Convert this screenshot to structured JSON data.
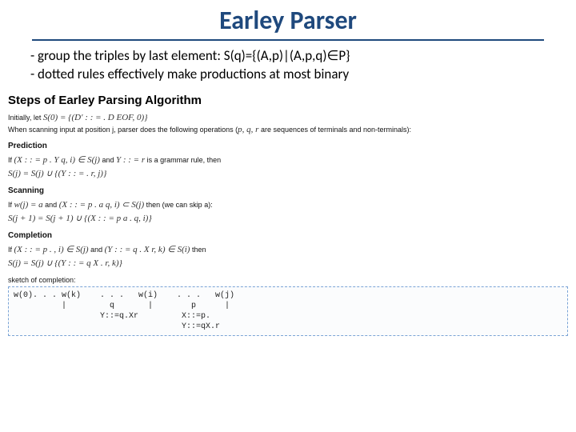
{
  "title": "Earley Parser",
  "bullets": {
    "b1": "- group the triples by last element: S(q)={(A,p)|(A,p,q)∈P}",
    "b2": "- dotted rules effectively make productions at most binary"
  },
  "section": "Steps of Earley Parsing Algorithm",
  "initially_label": "Initially, let",
  "initially_math": "S(0) = {(D′ : : = . D EOF, 0)}",
  "scanning_intro_a": "When scanning input at position j, parser does the following operations (",
  "scanning_intro_math": "p, q, r",
  "scanning_intro_b": " are sequences of terminals and non-terminals):",
  "prediction": {
    "title": "Prediction",
    "line1a": "If ",
    "line1m": "(X : : = p . Y q, i) ∈ S(j)",
    "line1b": " and ",
    "line1m2": "Y : : = r",
    "line1c": " is a grammar rule, then",
    "line2": "S(j) = S(j) ∪ {(Y : : = . r, j)}"
  },
  "scanning": {
    "title": "Scanning",
    "line1a": "If ",
    "line1m1": "w(j) = a",
    "line1b": " and ",
    "line1m2": "(X : : = p . a q, i) ⊂ S(j)",
    "line1c": " then (we can skip a):",
    "line2": "S(j + 1) = S(j + 1) ∪ {(X : : = p a . q, i)}"
  },
  "completion": {
    "title": "Completion",
    "line1a": "If ",
    "line1m1": "(X : : = p . , i) ∈ S(j)",
    "line1b": " and ",
    "line1m2": "(Y : : = q . X r, k) ∈ S(i)",
    "line1c": " then",
    "line2": "S(j) = S(j) ∪ {(Y : : = q X . r, k)}"
  },
  "sketch_label": "sketch of completion:",
  "code": "w(0). . . w(k)    . . .   w(i)    . . .   w(j)\n          |         q       |        p      |\n                  Y::=q.Xr         X::=p.\n                                   Y::=qX.r",
  "colors": {
    "title": "#1f497d",
    "rule": "#1f497d",
    "dashed_border": "#7aa4d6",
    "text": "#000000",
    "math": "#333333"
  },
  "fonts": {
    "title_size": 32,
    "bullet_size": 17,
    "section_size": 15,
    "body_size": 9,
    "math_size": 11,
    "code_size": 10
  }
}
